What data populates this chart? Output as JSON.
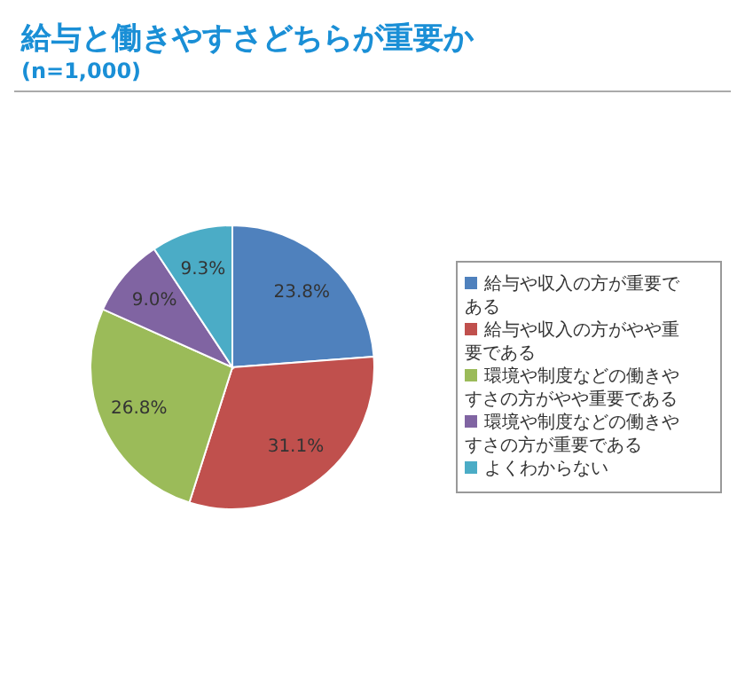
{
  "chart_data": {
    "type": "pie",
    "title": "給与と働きやすさどちらが重要か",
    "subtitle": "(n=1,000)",
    "categories": [
      "給与や収入の方が重要である",
      "給与や収入の方がやや重要である",
      "環境や制度などの働きやすさの方がやや重要である",
      "環境や制度などの働きやすさの方が重要である",
      "よくわからない"
    ],
    "values": [
      23.8,
      31.1,
      26.8,
      9.0,
      9.3
    ],
    "colors": [
      "#4f81bd",
      "#c0504d",
      "#9bbb59",
      "#8064a2",
      "#4bacc6"
    ],
    "value_labels": [
      "23.8%",
      "31.1%",
      "26.8%",
      "9.0%",
      "9.3%"
    ],
    "legend": "right"
  }
}
